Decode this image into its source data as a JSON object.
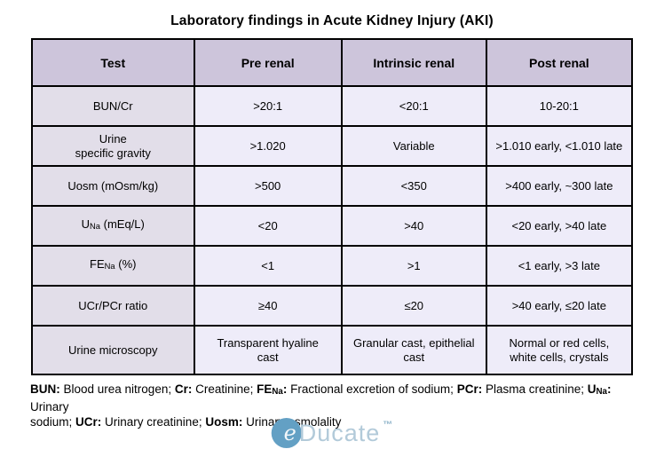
{
  "title": "Laboratory findings in Acute Kidney Injury (AKI)",
  "colors": {
    "header_bg": "#cdc5db",
    "test_col_bg": "#e2dee9",
    "cell_bg": "#eeecf9",
    "border": "#000000",
    "logo_circle": "#63a0c4",
    "logo_text": "#b2cad9",
    "logo_tm": "#8db3c9"
  },
  "table": {
    "headers": [
      "Test",
      "Pre renal",
      "Intrinsic renal",
      "Post renal"
    ],
    "rows": [
      {
        "cells": [
          "BUN/Cr",
          ">20:1",
          "<20:1",
          "10-20:1"
        ]
      },
      {
        "cells": [
          "Urine\nspecific gravity",
          ">1.020",
          "Variable",
          ">1.010 early, <1.010 late"
        ]
      },
      {
        "cells": [
          "Uosm (mOsm/kg)",
          ">500",
          "<350",
          ">400 early, ~300 late"
        ]
      },
      {
        "cells": [
          [
            {
              "t": "U"
            },
            {
              "t": "Na",
              "sub": true
            },
            {
              "t": " (mEq/L)"
            }
          ],
          "<20",
          ">40",
          "<20 early, >40 late"
        ]
      },
      {
        "cells": [
          [
            {
              "t": "FE"
            },
            {
              "t": "Na",
              "sub": true
            },
            {
              "t": " (%)"
            }
          ],
          "<1",
          ">1",
          "<1 early, >3 late"
        ]
      },
      {
        "cells": [
          "UCr/PCr ratio",
          "≥40",
          "≤20",
          ">40 early, ≤20 late"
        ]
      },
      {
        "cells": [
          "Urine microscopy",
          "Transparent hyaline\ncast",
          "Granular cast, epithelial\ncast",
          "Normal or red cells,\nwhite cells, crystals"
        ]
      }
    ]
  },
  "footnote": [
    {
      "t": "BUN:",
      "b": true
    },
    {
      "t": " Blood urea nitrogen; "
    },
    {
      "t": "Cr:",
      "b": true
    },
    {
      "t": " Creatinine; "
    },
    {
      "t": "FE",
      "b": true
    },
    {
      "t": "Na",
      "b": true,
      "sub": true
    },
    {
      "t": ":",
      "b": true
    },
    {
      "t": " Fractional excretion of sodium; "
    },
    {
      "t": "PCr:",
      "b": true
    },
    {
      "t": " Plasma creatinine; "
    },
    {
      "t": "U",
      "b": true
    },
    {
      "t": "Na",
      "b": true,
      "sub": true
    },
    {
      "t": ":",
      "b": true
    },
    {
      "t": " Urinary"
    },
    {
      "br": true
    },
    {
      "t": "sodium; "
    },
    {
      "t": "UCr:",
      "b": true
    },
    {
      "t": " Urinary creatinine; "
    },
    {
      "t": "Uosm:",
      "b": true
    },
    {
      "t": " Urinary osmolality"
    }
  ],
  "logo": {
    "initial": "e",
    "name": "Ducate",
    "trademark": "™"
  }
}
